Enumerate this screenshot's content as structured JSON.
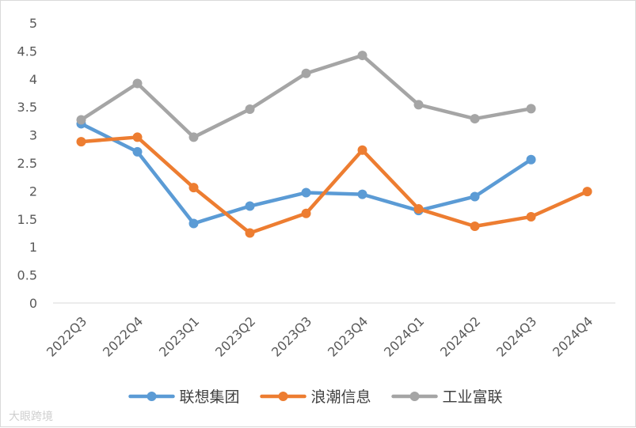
{
  "chart_data": {
    "type": "line",
    "title": "",
    "xlabel": "",
    "ylabel": "",
    "categories": [
      "2022Q3",
      "2022Q4",
      "2023Q1",
      "2023Q2",
      "2023Q3",
      "2023Q4",
      "2024Q1",
      "2024Q2",
      "2024Q3",
      "2024Q4"
    ],
    "ylim": [
      0,
      5
    ],
    "yticks": [
      "0",
      "0.5",
      "1",
      "1.5",
      "2",
      "2.5",
      "3",
      "3.5",
      "4",
      "4.5",
      "5"
    ],
    "grid": false,
    "legend_position": "bottom",
    "series": [
      {
        "name": "联想集团",
        "color": "#5b9bd5",
        "values": [
          3.2,
          2.7,
          1.42,
          1.73,
          1.97,
          1.94,
          1.65,
          1.9,
          2.56,
          null
        ]
      },
      {
        "name": "浪潮信息",
        "color": "#ed7d31",
        "values": [
          2.88,
          2.96,
          2.06,
          1.25,
          1.6,
          2.73,
          1.68,
          1.37,
          1.54,
          1.99
        ]
      },
      {
        "name": "工业富联",
        "color": "#a5a5a5",
        "values": [
          3.27,
          3.92,
          2.96,
          3.46,
          4.1,
          4.42,
          3.54,
          3.29,
          3.47,
          null
        ]
      }
    ]
  },
  "watermark": "大眼跨境"
}
